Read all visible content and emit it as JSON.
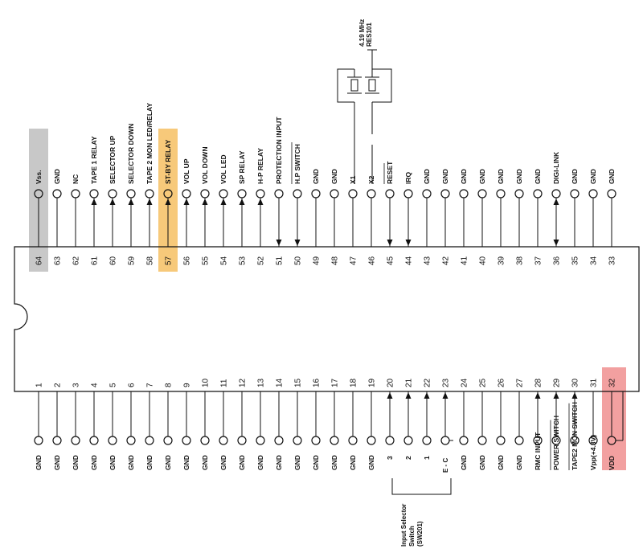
{
  "chip": {
    "top_row": [
      {
        "pin": "64",
        "label": "Vss.",
        "highlight": "gray"
      },
      {
        "pin": "63",
        "label": "GND"
      },
      {
        "pin": "62",
        "label": "NC"
      },
      {
        "pin": "61",
        "label": "TAPE 1 RELAY",
        "arrow": "up"
      },
      {
        "pin": "60",
        "label": "SELECTOR UP",
        "arrow": "up"
      },
      {
        "pin": "59",
        "label": "SELECTOR DOWN",
        "arrow": "up"
      },
      {
        "pin": "58",
        "label": "TAPE 2 MON LED/RELAY",
        "arrow": "up"
      },
      {
        "pin": "57",
        "label": "ST-BY RELAY",
        "arrow": "up",
        "highlight": "orange"
      },
      {
        "pin": "56",
        "label": "VOL UP",
        "arrow": "up"
      },
      {
        "pin": "55",
        "label": "VOL DOWN",
        "arrow": "up"
      },
      {
        "pin": "54",
        "label": "VOL LED",
        "arrow": "up"
      },
      {
        "pin": "53",
        "label": "SP RELAY",
        "arrow": "up"
      },
      {
        "pin": "52",
        "label": "H-P RELAY",
        "arrow": "up"
      },
      {
        "pin": "51",
        "label": "PROTECTION INPUT",
        "arrow": "down"
      },
      {
        "pin": "50",
        "label": "H.P SWITCH",
        "arrow": "down",
        "overbar": true
      },
      {
        "pin": "49",
        "label": "GND"
      },
      {
        "pin": "48",
        "label": "GND"
      },
      {
        "pin": "47",
        "label": "X1"
      },
      {
        "pin": "46",
        "label": "X2"
      },
      {
        "pin": "45",
        "label": "RESET",
        "arrow": "down",
        "overbar": true
      },
      {
        "pin": "44",
        "label": "IRQ",
        "arrow": "down"
      },
      {
        "pin": "43",
        "label": "GND"
      },
      {
        "pin": "42",
        "label": "GND"
      },
      {
        "pin": "41",
        "label": "GND"
      },
      {
        "pin": "40",
        "label": "GND"
      },
      {
        "pin": "39",
        "label": "GND"
      },
      {
        "pin": "38",
        "label": "GND"
      },
      {
        "pin": "37",
        "label": "GND"
      },
      {
        "pin": "36",
        "label": "DIGI-LINK",
        "arrow": "both"
      },
      {
        "pin": "35",
        "label": "GND"
      },
      {
        "pin": "34",
        "label": "GND"
      },
      {
        "pin": "33",
        "label": "GND"
      }
    ],
    "bottom_row": [
      {
        "pin": "1",
        "label": "GND"
      },
      {
        "pin": "2",
        "label": "GND"
      },
      {
        "pin": "3",
        "label": "GND"
      },
      {
        "pin": "4",
        "label": "GND"
      },
      {
        "pin": "5",
        "label": "GND"
      },
      {
        "pin": "6",
        "label": "GND"
      },
      {
        "pin": "7",
        "label": "GND"
      },
      {
        "pin": "8",
        "label": "GND"
      },
      {
        "pin": "9",
        "label": "GND"
      },
      {
        "pin": "10",
        "label": "GND"
      },
      {
        "pin": "11",
        "label": "GND"
      },
      {
        "pin": "12",
        "label": "GND"
      },
      {
        "pin": "13",
        "label": "GND"
      },
      {
        "pin": "14",
        "label": "GND"
      },
      {
        "pin": "15",
        "label": "GND"
      },
      {
        "pin": "16",
        "label": "GND"
      },
      {
        "pin": "17",
        "label": "GND"
      },
      {
        "pin": "18",
        "label": "GND"
      },
      {
        "pin": "19",
        "label": "GND"
      },
      {
        "pin": "20",
        "label": "3",
        "arrow": "up"
      },
      {
        "pin": "21",
        "label": "2",
        "arrow": "up"
      },
      {
        "pin": "22",
        "label": "1",
        "arrow": "up"
      },
      {
        "pin": "23",
        "label": "",
        "arrow": "up"
      },
      {
        "pin": "24",
        "label": "GND"
      },
      {
        "pin": "25",
        "label": "GND"
      },
      {
        "pin": "26",
        "label": "GND"
      },
      {
        "pin": "27",
        "label": "GND"
      },
      {
        "pin": "28",
        "label": "RMC INPUT",
        "arrow": "up"
      },
      {
        "pin": "29",
        "label": "POWER SWITCH",
        "arrow": "up",
        "overbar": true
      },
      {
        "pin": "30",
        "label": "TAPE2 MON SWITCH",
        "arrow": "up",
        "overbar": true
      },
      {
        "pin": "31",
        "label": "Vpp(+4.3V)"
      },
      {
        "pin": "32",
        "label": "VDD",
        "highlight": "red"
      }
    ]
  },
  "crystal": {
    "freq": "4.19 MHz",
    "ref": "RES101"
  },
  "selector": {
    "line1": "Input Selector",
    "line2": "Switch",
    "line3": "(SW201)",
    "common": "E - C"
  },
  "colors": {
    "gray": "#c8c8c8",
    "orange": "#f7c97a",
    "red": "#f2a0a0"
  }
}
